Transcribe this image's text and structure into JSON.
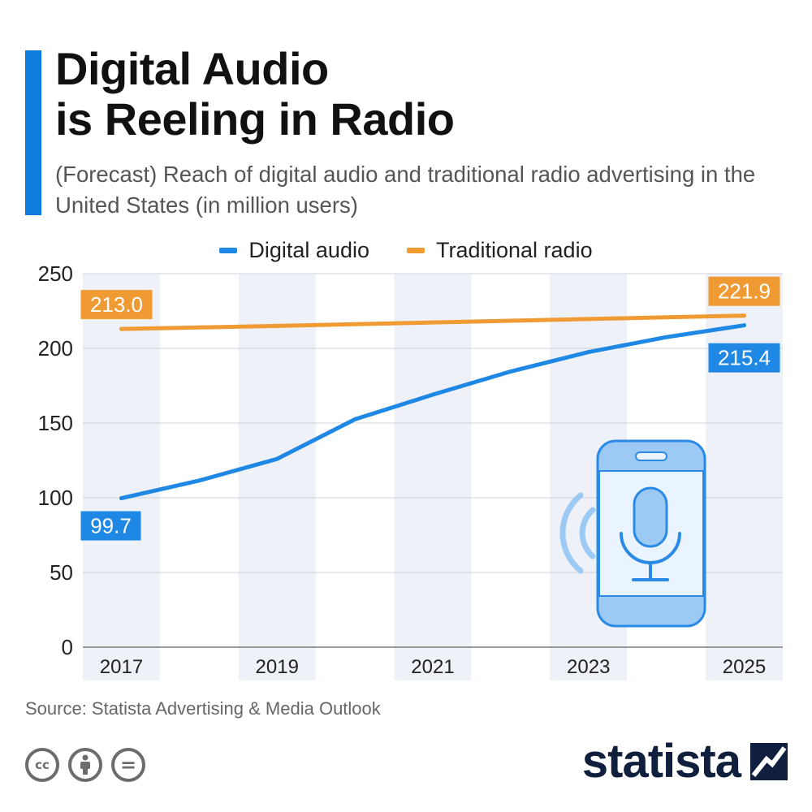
{
  "header": {
    "title_line1": "Digital Audio",
    "title_line2": "is Reeling in Radio",
    "subtitle": "(Forecast) Reach of digital audio and traditional radio advertising in the United States (in million users)"
  },
  "colors": {
    "accent": "#0f7de0",
    "digital": "#1f88e5",
    "radio": "#f09a33",
    "band": "#eef1f7",
    "grid": "#cfd3d9"
  },
  "chart_data": {
    "type": "line",
    "title": "Digital Audio is Reeling in Radio",
    "xlabel": "",
    "ylabel": "",
    "x": [
      2017,
      2018,
      2019,
      2020,
      2021,
      2022,
      2023,
      2024,
      2025
    ],
    "xticks": [
      "2017",
      "2019",
      "2021",
      "2023",
      "2025"
    ],
    "yticks": [
      "0",
      "50",
      "100",
      "150",
      "200",
      "250"
    ],
    "ylim": [
      0,
      250
    ],
    "series": [
      {
        "name": "Digital audio",
        "color": "#1f88e5",
        "values": [
          99.7,
          111.5,
          126.0,
          152.5,
          169.0,
          184.5,
          197.5,
          207.5,
          215.4
        ]
      },
      {
        "name": "Traditional radio",
        "color": "#f09a33",
        "values": [
          213.0,
          214.0,
          215.0,
          216.2,
          217.3,
          218.5,
          219.6,
          220.8,
          221.9
        ]
      }
    ],
    "labels": [
      {
        "series": 0,
        "index": 0,
        "text": "99.7"
      },
      {
        "series": 0,
        "index": 8,
        "text": "215.4"
      },
      {
        "series": 1,
        "index": 0,
        "text": "213.0"
      },
      {
        "series": 1,
        "index": 8,
        "text": "221.9"
      }
    ]
  },
  "footer": {
    "source": "Source: Statista Advertising & Media Outlook",
    "brand": "statista",
    "licence_icons": [
      "cc-icon",
      "attribution-icon",
      "no-derivatives-icon"
    ],
    "cc_text": "cc",
    "nd_text": "="
  }
}
